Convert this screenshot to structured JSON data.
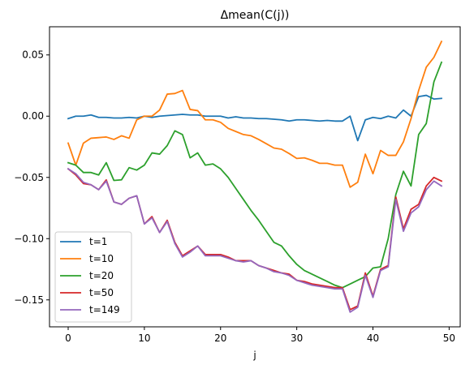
{
  "chart_data": {
    "type": "line",
    "title": "Δmean(C(j))",
    "xlabel": "j",
    "ylabel": "",
    "xlim": [
      -2.45,
      51.45
    ],
    "ylim": [
      -0.172,
      0.073
    ],
    "grid": false,
    "legend_position": "lower-left",
    "xticks": [
      0,
      10,
      20,
      30,
      40,
      50
    ],
    "xtick_labels": [
      "0",
      "10",
      "20",
      "30",
      "40",
      "50"
    ],
    "yticks": [
      0.05,
      0.0,
      -0.05,
      -0.1,
      -0.15
    ],
    "ytick_labels": [
      "0.05",
      "0.00",
      "−0.05",
      "−0.10",
      "−0.15"
    ],
    "x": [
      0,
      1,
      2,
      3,
      4,
      5,
      6,
      7,
      8,
      9,
      10,
      11,
      12,
      13,
      14,
      15,
      16,
      17,
      18,
      19,
      20,
      21,
      22,
      23,
      24,
      25,
      26,
      27,
      28,
      29,
      30,
      31,
      32,
      33,
      34,
      35,
      36,
      37,
      38,
      39,
      40,
      41,
      42,
      43,
      44,
      45,
      46,
      47,
      48,
      49
    ],
    "series": [
      {
        "name": "t=1",
        "color": "#1f77b4",
        "values": [
          -0.002,
          0.0,
          0.0,
          0.001,
          -0.001,
          -0.001,
          -0.0015,
          -0.0015,
          -0.001,
          -0.0015,
          0.0,
          -0.001,
          0.0,
          0.0005,
          0.001,
          0.0015,
          0.001,
          0.001,
          0.0,
          0.0,
          0.0,
          -0.0015,
          -0.0005,
          -0.0015,
          -0.0015,
          -0.002,
          -0.002,
          -0.0025,
          -0.003,
          -0.004,
          -0.003,
          -0.003,
          -0.0035,
          -0.004,
          -0.0035,
          -0.004,
          -0.004,
          0.0,
          -0.02,
          -0.003,
          -0.001,
          -0.002,
          0.0,
          -0.0015,
          0.005,
          0.0,
          0.016,
          0.017,
          0.014,
          0.0145
        ]
      },
      {
        "name": "t=10",
        "color": "#ff7f0e",
        "values": [
          -0.022,
          -0.04,
          -0.022,
          -0.018,
          -0.0175,
          -0.017,
          -0.019,
          -0.016,
          -0.018,
          -0.003,
          0.0,
          0.0,
          0.005,
          0.018,
          0.0185,
          0.021,
          0.0055,
          0.0045,
          -0.003,
          -0.003,
          -0.005,
          -0.01,
          -0.0125,
          -0.015,
          -0.016,
          -0.019,
          -0.0225,
          -0.026,
          -0.027,
          -0.0305,
          -0.0345,
          -0.034,
          -0.036,
          -0.0385,
          -0.0385,
          -0.04,
          -0.04,
          -0.058,
          -0.054,
          -0.031,
          -0.047,
          -0.028,
          -0.032,
          -0.032,
          -0.021,
          -0.002,
          0.021,
          0.04,
          0.048,
          0.061
        ]
      },
      {
        "name": "t=20",
        "color": "#2ca02c",
        "values": [
          -0.038,
          -0.04,
          -0.046,
          -0.046,
          -0.048,
          -0.038,
          -0.0525,
          -0.052,
          -0.042,
          -0.044,
          -0.04,
          -0.03,
          -0.031,
          -0.024,
          -0.012,
          -0.015,
          -0.034,
          -0.03,
          -0.04,
          -0.039,
          -0.043,
          -0.05,
          -0.059,
          -0.068,
          -0.077,
          -0.085,
          -0.094,
          -0.103,
          -0.106,
          -0.114,
          -0.121,
          -0.126,
          -0.129,
          -0.132,
          -0.135,
          -0.138,
          -0.14,
          -0.137,
          -0.134,
          -0.131,
          -0.124,
          -0.123,
          -0.1,
          -0.064,
          -0.045,
          -0.057,
          -0.015,
          -0.006,
          0.028,
          0.044
        ]
      },
      {
        "name": "t=50",
        "color": "#d62728",
        "values": [
          -0.043,
          -0.048,
          -0.055,
          -0.056,
          -0.06,
          -0.052,
          -0.07,
          -0.072,
          -0.067,
          -0.065,
          -0.088,
          -0.082,
          -0.095,
          -0.085,
          -0.103,
          -0.114,
          -0.11,
          -0.106,
          -0.113,
          -0.113,
          -0.113,
          -0.115,
          -0.118,
          -0.118,
          -0.118,
          -0.122,
          -0.124,
          -0.126,
          -0.128,
          -0.129,
          -0.134,
          -0.135,
          -0.137,
          -0.138,
          -0.139,
          -0.14,
          -0.14,
          -0.158,
          -0.155,
          -0.128,
          -0.147,
          -0.125,
          -0.122,
          -0.066,
          -0.092,
          -0.076,
          -0.072,
          -0.057,
          -0.05,
          -0.053
        ]
      },
      {
        "name": "t=149",
        "color": "#9467bd",
        "values": [
          -0.043,
          -0.047,
          -0.054,
          -0.056,
          -0.06,
          -0.053,
          -0.07,
          -0.072,
          -0.067,
          -0.065,
          -0.088,
          -0.083,
          -0.095,
          -0.086,
          -0.104,
          -0.115,
          -0.111,
          -0.106,
          -0.114,
          -0.114,
          -0.114,
          -0.116,
          -0.118,
          -0.119,
          -0.118,
          -0.122,
          -0.124,
          -0.127,
          -0.128,
          -0.13,
          -0.134,
          -0.136,
          -0.138,
          -0.139,
          -0.14,
          -0.141,
          -0.141,
          -0.16,
          -0.156,
          -0.13,
          -0.148,
          -0.126,
          -0.123,
          -0.068,
          -0.094,
          -0.079,
          -0.074,
          -0.06,
          -0.053,
          -0.057
        ]
      }
    ]
  }
}
